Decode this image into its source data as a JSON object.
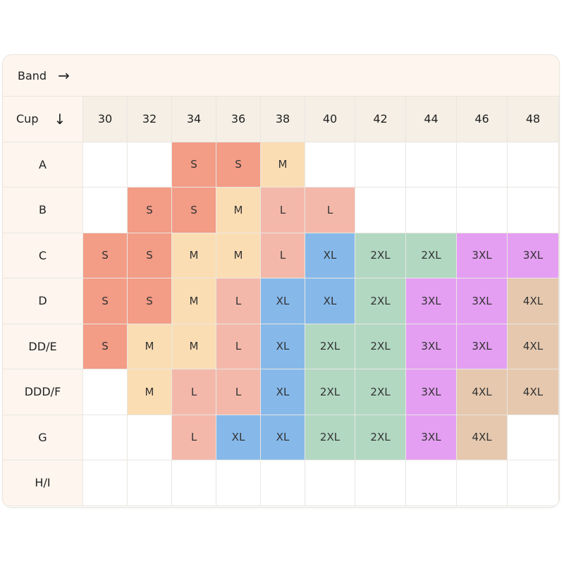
{
  "header": {
    "band_label": "Band",
    "band_arrow": "→",
    "cup_label": "Cup",
    "cup_arrow": "↓"
  },
  "bands": [
    "30",
    "32",
    "34",
    "36",
    "38",
    "40",
    "42",
    "44",
    "46",
    "48"
  ],
  "colors": {
    "S": "#f39c86",
    "M": "#fbddb3",
    "L": "#f3b8aa",
    "XL": "#86b9ea",
    "2XL": "#b2d8c2",
    "3XL": "#e49ff2",
    "4XL": "#e5c8ae"
  },
  "rows": [
    {
      "cup": "A",
      "sizes": [
        "",
        "",
        "S",
        "S",
        "M",
        "",
        "",
        "",
        "",
        ""
      ]
    },
    {
      "cup": "B",
      "sizes": [
        "",
        "S",
        "S",
        "M",
        "L",
        "L",
        "",
        "",
        "",
        ""
      ]
    },
    {
      "cup": "C",
      "sizes": [
        "S",
        "S",
        "M",
        "M",
        "L",
        "XL",
        "2XL",
        "2XL",
        "3XL",
        "3XL"
      ]
    },
    {
      "cup": "D",
      "sizes": [
        "S",
        "S",
        "M",
        "L",
        "XL",
        "XL",
        "2XL",
        "3XL",
        "3XL",
        "4XL"
      ]
    },
    {
      "cup": "DD/E",
      "sizes": [
        "S",
        "M",
        "M",
        "L",
        "XL",
        "2XL",
        "2XL",
        "3XL",
        "3XL",
        "4XL"
      ]
    },
    {
      "cup": "DDD/F",
      "sizes": [
        "",
        "M",
        "L",
        "L",
        "XL",
        "2XL",
        "2XL",
        "3XL",
        "4XL",
        "4XL"
      ]
    },
    {
      "cup": "G",
      "sizes": [
        "",
        "",
        "L",
        "XL",
        "XL",
        "2XL",
        "2XL",
        "3XL",
        "4XL",
        ""
      ]
    },
    {
      "cup": "H/I",
      "sizes": [
        "",
        "",
        "",
        "",
        "",
        "",
        "",
        "",
        "",
        ""
      ]
    }
  ]
}
